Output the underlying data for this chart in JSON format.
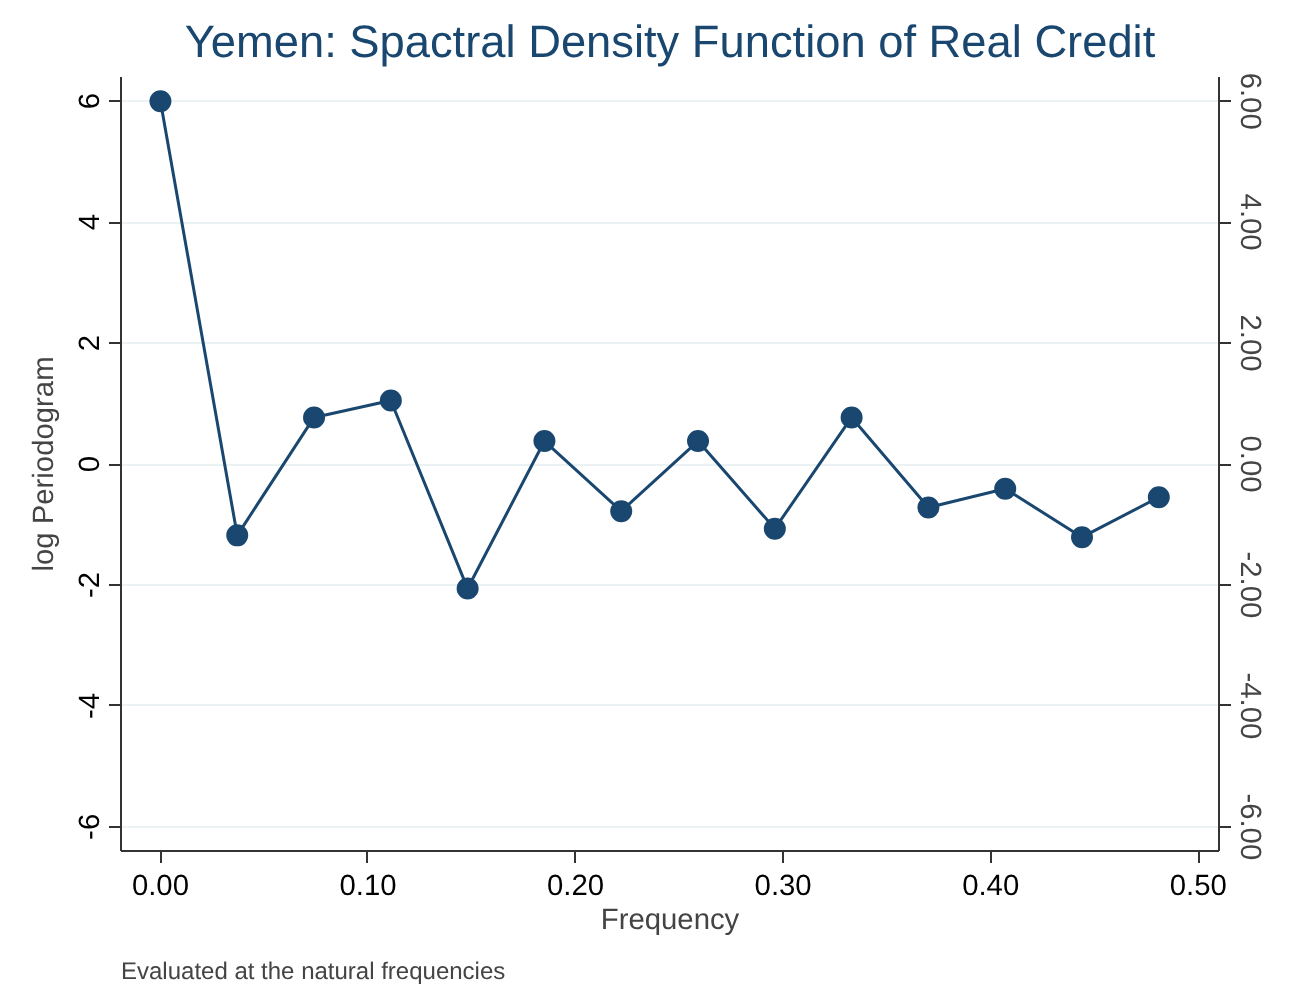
{
  "chart_data": {
    "type": "line",
    "title": "Yemen: Spactral Density Function of Real Credit",
    "xlabel": "Frequency",
    "ylabel": "log Periodogram",
    "x": [
      0.0,
      0.037,
      0.074,
      0.111,
      0.148,
      0.185,
      0.222,
      0.259,
      0.296,
      0.333,
      0.37,
      0.407,
      0.444,
      0.481
    ],
    "series": [
      {
        "color": "#1a476f",
        "values": [
          6.0,
          -1.18,
          0.77,
          1.05,
          -2.06,
          0.38,
          -0.78,
          0.38,
          -1.07,
          0.77,
          -0.72,
          -0.41,
          -1.21,
          -0.55
        ]
      }
    ],
    "xlim": [
      -0.019,
      0.51
    ],
    "xticks": [
      {
        "value": 0,
        "label": "0.00"
      },
      {
        "value": 0.1,
        "label": "0.10"
      },
      {
        "value": 0.2,
        "label": "0.20"
      },
      {
        "value": 0.3,
        "label": "0.30"
      },
      {
        "value": 0.4,
        "label": "0.40"
      },
      {
        "value": 0.5,
        "label": "0.50"
      }
    ],
    "ylim": [
      -6.4,
      6.4
    ],
    "yticks": [
      -6,
      -4,
      -2,
      0,
      2,
      4,
      6
    ],
    "y2lim": [
      -6.4,
      6.4
    ],
    "y2ticks": [
      {
        "value": -6,
        "label": "-6.00"
      },
      {
        "value": -4,
        "label": "-4.00"
      },
      {
        "value": -2,
        "label": "-2.00"
      },
      {
        "value": 0,
        "label": "0.00"
      },
      {
        "value": 2,
        "label": "2.00"
      },
      {
        "value": 4,
        "label": "4.00"
      },
      {
        "value": 6,
        "label": "6.00"
      }
    ],
    "grid": "y",
    "marker": "circle",
    "line_style": "solid",
    "annotations": [
      "Evaluated at the natural frequencies"
    ]
  }
}
